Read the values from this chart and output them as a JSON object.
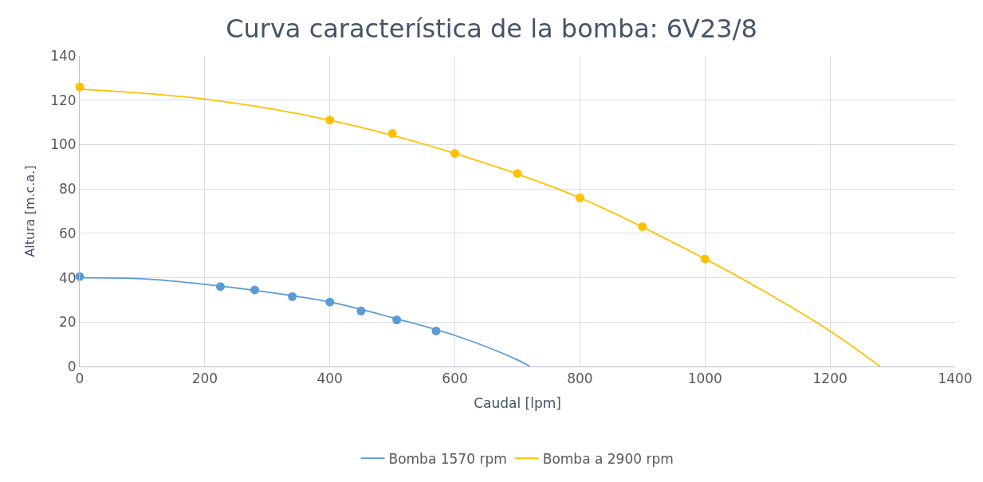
{
  "chart_data": {
    "type": "line",
    "title": "Curva característica de la bomba: 6V23/8",
    "xlabel": "Caudal [lpm]",
    "ylabel": "Altura [m.c.a.]",
    "xlim": [
      0,
      1400
    ],
    "xticks": [
      0,
      200,
      400,
      600,
      800,
      1000,
      1200,
      1400
    ],
    "ylim": [
      0,
      140
    ],
    "yticks": [
      0,
      20,
      40,
      60,
      80,
      100,
      120,
      140
    ],
    "grid": true,
    "legend": "bottom",
    "line_style": "solid",
    "series": [
      {
        "type": "scatter",
        "marker": "circle",
        "color": "#5b9bd5",
        "x": [
          0,
          225,
          280,
          340,
          400,
          450,
          507,
          570
        ],
        "values": [
          40.5,
          36,
          34.5,
          31.5,
          29,
          25,
          21,
          16
        ]
      },
      {
        "type": "scatter",
        "marker": "circle",
        "color": "#ffc000",
        "x": [
          0,
          400,
          500,
          600,
          700,
          800,
          900,
          1000
        ],
        "values": [
          126,
          111,
          105,
          96,
          87,
          76,
          63,
          48.5
        ]
      },
      {
        "name": "Bomba 1570 rpm",
        "color": "#5b9bd5",
        "x": [
          0,
          100,
          200,
          300,
          400,
          500,
          600,
          700,
          720
        ],
        "values": [
          40,
          39.5,
          37,
          33.5,
          29,
          22,
          14,
          3,
          0
        ]
      },
      {
        "name": "Bomba a 2900 rpm",
        "color": "#ffc000",
        "x": [
          0,
          200,
          400,
          600,
          800,
          1000,
          1100,
          1200,
          1280
        ],
        "values": [
          125,
          120.5,
          111,
          96,
          76,
          48.5,
          33,
          16,
          0
        ]
      }
    ]
  }
}
